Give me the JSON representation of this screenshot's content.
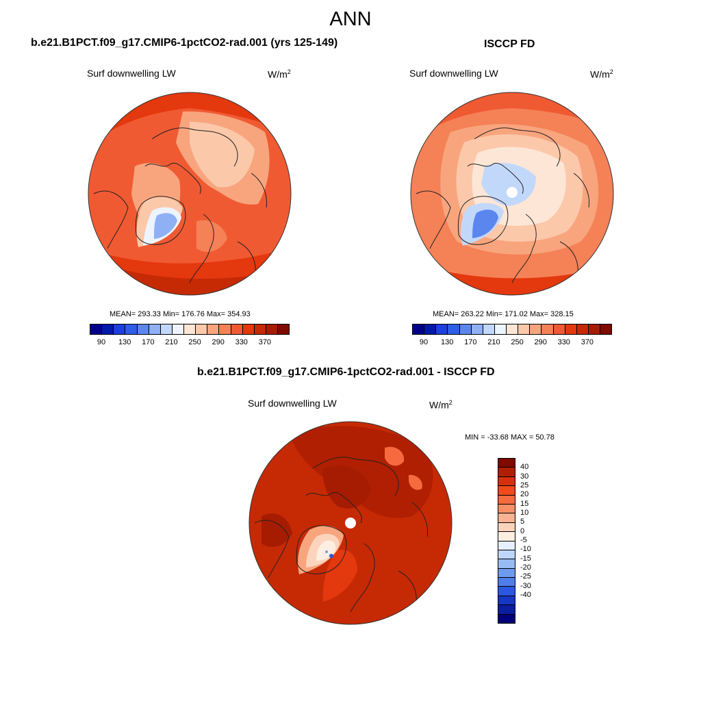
{
  "title": "ANN",
  "panels": {
    "model": {
      "title": "b.e21.B1PCT.f09_g17.CMIP6-1pctCO2-rad.001 (yrs 125-149)",
      "variable": "Surf downwelling LW",
      "units_base": "W/m",
      "units_exp": "2",
      "stats": "MEAN= 293.33  Min= 176.76  Max= 354.93"
    },
    "obs": {
      "title": "ISCCP FD",
      "variable": "Surf downwelling LW",
      "units_base": "W/m",
      "units_exp": "2",
      "stats": "MEAN= 263.22  Min= 171.02  Max= 328.15"
    },
    "diff": {
      "title": "b.e21.B1PCT.f09_g17.CMIP6-1pctCO2-rad.001 - ISCCP FD",
      "variable": "Surf downwelling LW",
      "units_base": "W/m",
      "units_exp": "2",
      "stats": "MIN = -33.68 MAX =  50.78"
    }
  },
  "colorbar_field": {
    "colors": [
      "#00008b",
      "#0019a8",
      "#1d3fdd",
      "#2e5de8",
      "#5a86ee",
      "#8fb0f5",
      "#c2d8fb",
      "#eef4fd",
      "#fde6d6",
      "#fbc8aa",
      "#f8a57e",
      "#f58157",
      "#f05a32",
      "#e4380f",
      "#c52a05",
      "#a61c02",
      "#7f0a00"
    ],
    "tick_labels": [
      "90",
      "130",
      "170",
      "210",
      "250",
      "290",
      "330",
      "370"
    ]
  },
  "colorbar_diff": {
    "colors": [
      "#7f0a00",
      "#b01f02",
      "#d63010",
      "#f04a1e",
      "#f56a3f",
      "#f78f66",
      "#f9b292",
      "#fcd4be",
      "#fdeee2",
      "#e6efff",
      "#bfd6fb",
      "#98bbf5",
      "#6f9bee",
      "#4f7dea",
      "#2b57e2",
      "#1736c4",
      "#0b1ea0",
      "#00007a"
    ],
    "tick_labels": [
      "40",
      "30",
      "25",
      "20",
      "15",
      "10",
      "5",
      "0",
      "-5",
      "-10",
      "-15",
      "-20",
      "-25",
      "-30",
      "-40"
    ]
  },
  "chart_data": [
    {
      "type": "heatmap",
      "projection": "north polar stereographic",
      "title": "b.e21.B1PCT.f09_g17.CMIP6-1pctCO2-rad.001 (yrs 125-149)",
      "variable": "Surf downwelling LW",
      "units": "W/m2",
      "mean": 293.33,
      "min": 176.76,
      "max": 354.93,
      "contour_levels": [
        90,
        110,
        130,
        150,
        170,
        190,
        210,
        230,
        250,
        270,
        290,
        310,
        330,
        350,
        370
      ]
    },
    {
      "type": "heatmap",
      "projection": "north polar stereographic",
      "title": "ISCCP FD",
      "variable": "Surf downwelling LW",
      "units": "W/m2",
      "mean": 263.22,
      "min": 171.02,
      "max": 328.15,
      "contour_levels": [
        90,
        110,
        130,
        150,
        170,
        190,
        210,
        230,
        250,
        270,
        290,
        310,
        330,
        350,
        370
      ]
    },
    {
      "type": "heatmap",
      "projection": "north polar stereographic",
      "title": "b.e21.B1PCT.f09_g17.CMIP6-1pctCO2-rad.001 - ISCCP FD",
      "variable": "Surf downwelling LW",
      "units": "W/m2",
      "min": -33.68,
      "max": 50.78,
      "contour_levels": [
        -40,
        -30,
        -25,
        -20,
        -15,
        -10,
        -5,
        0,
        5,
        10,
        15,
        20,
        25,
        30,
        40
      ]
    }
  ]
}
